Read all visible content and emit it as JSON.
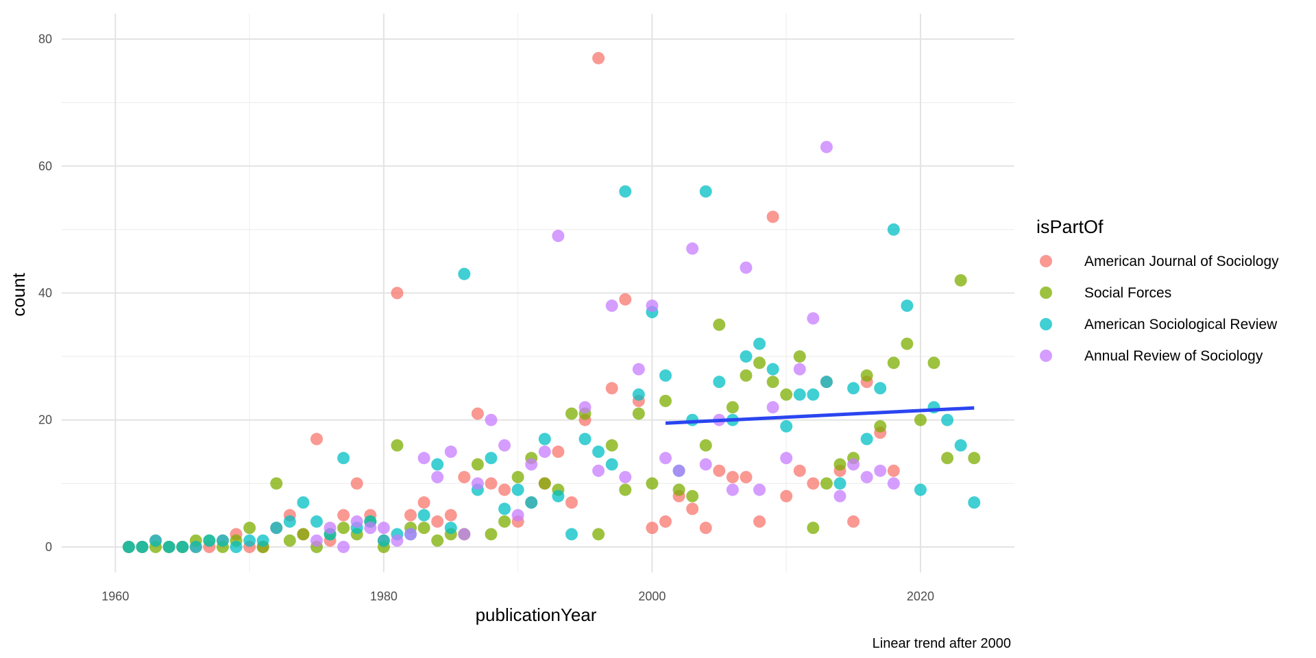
{
  "chart_data": {
    "type": "scatter",
    "xlabel": "publicationYear",
    "ylabel": "count",
    "caption": "Linear trend after 2000",
    "legend_title": "isPartOf",
    "legend_position": "right",
    "grid": true,
    "xlim": [
      1956,
      2027
    ],
    "ylim": [
      -4,
      84
    ],
    "x_ticks": [
      1960,
      1980,
      2000,
      2020
    ],
    "y_ticks": [
      0,
      20,
      40,
      60,
      80
    ],
    "series": [
      {
        "name": "American Journal of Sociology",
        "color": "#F8766D",
        "points": [
          [
            1961,
            0
          ],
          [
            1962,
            0
          ],
          [
            1963,
            1
          ],
          [
            1964,
            0
          ],
          [
            1965,
            0
          ],
          [
            1966,
            0
          ],
          [
            1967,
            0
          ],
          [
            1968,
            1
          ],
          [
            1969,
            2
          ],
          [
            1970,
            0
          ],
          [
            1971,
            0
          ],
          [
            1972,
            3
          ],
          [
            1973,
            5
          ],
          [
            1974,
            2
          ],
          [
            1975,
            17
          ],
          [
            1976,
            1
          ],
          [
            1977,
            5
          ],
          [
            1978,
            10
          ],
          [
            1979,
            5
          ],
          [
            1980,
            1
          ],
          [
            1981,
            40
          ],
          [
            1982,
            5
          ],
          [
            1983,
            7
          ],
          [
            1984,
            4
          ],
          [
            1985,
            5
          ],
          [
            1986,
            11
          ],
          [
            1987,
            21
          ],
          [
            1988,
            10
          ],
          [
            1989,
            9
          ],
          [
            1990,
            4
          ],
          [
            1991,
            7
          ],
          [
            1992,
            10
          ],
          [
            1993,
            15
          ],
          [
            1994,
            7
          ],
          [
            1995,
            20
          ],
          [
            1996,
            77
          ],
          [
            1997,
            25
          ],
          [
            1998,
            39
          ],
          [
            1999,
            23
          ],
          [
            2000,
            3
          ],
          [
            2001,
            4
          ],
          [
            2002,
            8
          ],
          [
            2003,
            6
          ],
          [
            2004,
            3
          ],
          [
            2005,
            12
          ],
          [
            2006,
            11
          ],
          [
            2007,
            11
          ],
          [
            2008,
            4
          ],
          [
            2009,
            52
          ],
          [
            2010,
            8
          ],
          [
            2011,
            12
          ],
          [
            2012,
            10
          ],
          [
            2013,
            26
          ],
          [
            2014,
            12
          ],
          [
            2015,
            4
          ],
          [
            2016,
            26
          ],
          [
            2017,
            18
          ],
          [
            2018,
            12
          ]
        ]
      },
      {
        "name": "Social Forces",
        "color": "#7CAE00",
        "points": [
          [
            1961,
            0
          ],
          [
            1962,
            0
          ],
          [
            1963,
            0
          ],
          [
            1964,
            0
          ],
          [
            1965,
            0
          ],
          [
            1966,
            1
          ],
          [
            1967,
            1
          ],
          [
            1968,
            0
          ],
          [
            1969,
            1
          ],
          [
            1970,
            3
          ],
          [
            1971,
            0
          ],
          [
            1972,
            10
          ],
          [
            1973,
            1
          ],
          [
            1974,
            2
          ],
          [
            1975,
            0
          ],
          [
            1976,
            2
          ],
          [
            1977,
            3
          ],
          [
            1978,
            2
          ],
          [
            1979,
            4
          ],
          [
            1980,
            0
          ],
          [
            1981,
            16
          ],
          [
            1982,
            3
          ],
          [
            1983,
            3
          ],
          [
            1984,
            1
          ],
          [
            1985,
            2
          ],
          [
            1986,
            2
          ],
          [
            1987,
            13
          ],
          [
            1988,
            2
          ],
          [
            1989,
            4
          ],
          [
            1990,
            11
          ],
          [
            1991,
            14
          ],
          [
            1992,
            10
          ],
          [
            1993,
            9
          ],
          [
            1994,
            21
          ],
          [
            1995,
            21
          ],
          [
            1996,
            2
          ],
          [
            1997,
            16
          ],
          [
            1998,
            9
          ],
          [
            1999,
            21
          ],
          [
            2000,
            10
          ],
          [
            2001,
            23
          ],
          [
            2002,
            9
          ],
          [
            2003,
            8
          ],
          [
            2004,
            16
          ],
          [
            2005,
            35
          ],
          [
            2006,
            22
          ],
          [
            2007,
            27
          ],
          [
            2008,
            29
          ],
          [
            2009,
            26
          ],
          [
            2010,
            24
          ],
          [
            2011,
            30
          ],
          [
            2012,
            3
          ],
          [
            2013,
            10
          ],
          [
            2014,
            13
          ],
          [
            2015,
            14
          ],
          [
            2016,
            27
          ],
          [
            2017,
            19
          ],
          [
            2018,
            29
          ],
          [
            2019,
            32
          ],
          [
            2020,
            20
          ],
          [
            2021,
            29
          ],
          [
            2022,
            14
          ],
          [
            2023,
            42
          ],
          [
            2024,
            14
          ]
        ]
      },
      {
        "name": "American Sociological Review",
        "color": "#00BFC4",
        "points": [
          [
            1961,
            0
          ],
          [
            1962,
            0
          ],
          [
            1963,
            1
          ],
          [
            1964,
            0
          ],
          [
            1965,
            0
          ],
          [
            1966,
            0
          ],
          [
            1967,
            1
          ],
          [
            1968,
            1
          ],
          [
            1969,
            0
          ],
          [
            1970,
            1
          ],
          [
            1971,
            1
          ],
          [
            1972,
            3
          ],
          [
            1973,
            4
          ],
          [
            1974,
            7
          ],
          [
            1975,
            4
          ],
          [
            1976,
            2
          ],
          [
            1977,
            14
          ],
          [
            1978,
            3
          ],
          [
            1979,
            4
          ],
          [
            1980,
            1
          ],
          [
            1981,
            2
          ],
          [
            1982,
            2
          ],
          [
            1983,
            5
          ],
          [
            1984,
            13
          ],
          [
            1985,
            3
          ],
          [
            1986,
            43
          ],
          [
            1987,
            9
          ],
          [
            1988,
            14
          ],
          [
            1989,
            6
          ],
          [
            1990,
            9
          ],
          [
            1991,
            7
          ],
          [
            1992,
            17
          ],
          [
            1993,
            8
          ],
          [
            1994,
            2
          ],
          [
            1995,
            17
          ],
          [
            1996,
            15
          ],
          [
            1997,
            13
          ],
          [
            1998,
            56
          ],
          [
            1999,
            24
          ],
          [
            2000,
            37
          ],
          [
            2001,
            27
          ],
          [
            2002,
            12
          ],
          [
            2003,
            20
          ],
          [
            2004,
            56
          ],
          [
            2005,
            26
          ],
          [
            2006,
            20
          ],
          [
            2007,
            30
          ],
          [
            2008,
            32
          ],
          [
            2009,
            28
          ],
          [
            2010,
            19
          ],
          [
            2011,
            24
          ],
          [
            2012,
            24
          ],
          [
            2013,
            26
          ],
          [
            2014,
            10
          ],
          [
            2015,
            25
          ],
          [
            2016,
            17
          ],
          [
            2017,
            25
          ],
          [
            2018,
            50
          ],
          [
            2019,
            38
          ],
          [
            2020,
            9
          ],
          [
            2021,
            22
          ],
          [
            2022,
            20
          ],
          [
            2023,
            16
          ],
          [
            2024,
            7
          ]
        ]
      },
      {
        "name": "Annual Review of Sociology",
        "color": "#C77CFF",
        "points": [
          [
            1975,
            1
          ],
          [
            1976,
            3
          ],
          [
            1977,
            0
          ],
          [
            1978,
            4
          ],
          [
            1979,
            3
          ],
          [
            1980,
            3
          ],
          [
            1981,
            1
          ],
          [
            1982,
            2
          ],
          [
            1983,
            14
          ],
          [
            1984,
            11
          ],
          [
            1985,
            15
          ],
          [
            1986,
            2
          ],
          [
            1987,
            10
          ],
          [
            1988,
            20
          ],
          [
            1989,
            16
          ],
          [
            1990,
            5
          ],
          [
            1991,
            13
          ],
          [
            1992,
            15
          ],
          [
            1993,
            49
          ],
          [
            1995,
            22
          ],
          [
            1996,
            12
          ],
          [
            1997,
            38
          ],
          [
            1998,
            11
          ],
          [
            1999,
            28
          ],
          [
            2000,
            38
          ],
          [
            2001,
            14
          ],
          [
            2002,
            12
          ],
          [
            2003,
            47
          ],
          [
            2004,
            13
          ],
          [
            2005,
            20
          ],
          [
            2006,
            9
          ],
          [
            2007,
            44
          ],
          [
            2008,
            9
          ],
          [
            2009,
            22
          ],
          [
            2010,
            14
          ],
          [
            2011,
            28
          ],
          [
            2012,
            36
          ],
          [
            2013,
            63
          ],
          [
            2014,
            8
          ],
          [
            2015,
            13
          ],
          [
            2016,
            11
          ],
          [
            2017,
            12
          ],
          [
            2018,
            10
          ]
        ]
      }
    ],
    "trend_line": {
      "label": "Linear trend after 2000",
      "color": "#2A45F0",
      "x": [
        2001,
        2024
      ],
      "y": [
        19.5,
        21.9
      ]
    }
  }
}
